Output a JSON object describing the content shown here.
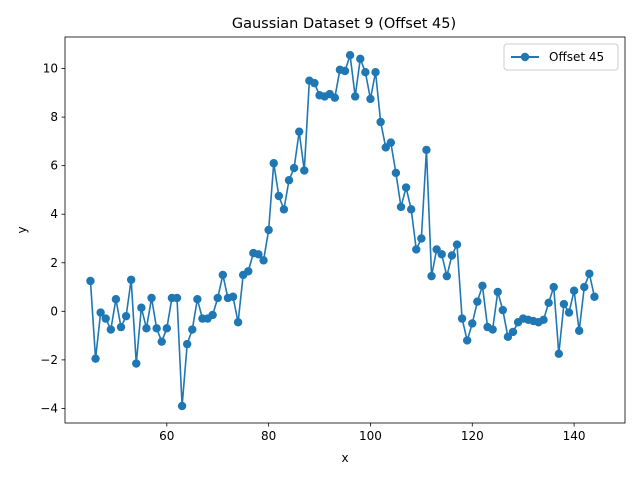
{
  "chart_data": {
    "type": "line",
    "title": "Gaussian Dataset 9 (Offset 45)",
    "xlabel": "x",
    "ylabel": "y",
    "xlim": [
      40,
      150
    ],
    "ylim": [
      -4.6,
      11.3
    ],
    "xticks": [
      60,
      80,
      100,
      120,
      140
    ],
    "yticks": [
      -4,
      -2,
      0,
      2,
      4,
      6,
      8,
      10
    ],
    "grid": false,
    "legend_position": "top-right",
    "series": [
      {
        "name": "Offset 45",
        "color": "#1f77b4",
        "marker": "circle",
        "x": [
          45,
          46,
          47,
          48,
          49,
          50,
          51,
          52,
          53,
          54,
          55,
          56,
          57,
          58,
          59,
          60,
          61,
          62,
          63,
          64,
          65,
          66,
          67,
          68,
          69,
          70,
          71,
          72,
          73,
          74,
          75,
          76,
          77,
          78,
          79,
          80,
          81,
          82,
          83,
          84,
          85,
          86,
          87,
          88,
          89,
          90,
          91,
          92,
          93,
          94,
          95,
          96,
          97,
          98,
          99,
          100,
          101,
          102,
          103,
          104,
          105,
          106,
          107,
          108,
          109,
          110,
          111,
          112,
          113,
          114,
          115,
          116,
          117,
          118,
          119,
          120,
          121,
          122,
          123,
          124,
          125,
          126,
          127,
          128,
          129,
          130,
          131,
          132,
          133,
          134,
          135,
          136,
          137,
          138,
          139,
          140,
          141,
          142,
          143,
          144
        ],
        "values": [
          1.25,
          -1.95,
          -0.05,
          -0.3,
          -0.75,
          0.5,
          -0.65,
          -0.2,
          1.3,
          -2.15,
          0.15,
          -0.7,
          0.55,
          -0.7,
          -1.25,
          -0.7,
          0.55,
          0.55,
          -3.9,
          -1.35,
          -0.75,
          0.5,
          -0.3,
          -0.3,
          -0.15,
          0.55,
          1.5,
          0.55,
          0.6,
          -0.45,
          1.5,
          1.65,
          2.4,
          2.35,
          2.1,
          3.35,
          6.1,
          4.75,
          4.2,
          5.4,
          5.9,
          7.4,
          5.8,
          9.5,
          9.4,
          8.9,
          8.85,
          8.95,
          8.8,
          9.95,
          9.9,
          10.55,
          8.85,
          10.4,
          9.85,
          8.75,
          9.85,
          7.8,
          6.75,
          6.95,
          5.7,
          4.3,
          5.1,
          4.2,
          2.55,
          3.0,
          6.65,
          1.45,
          2.55,
          2.35,
          1.45,
          2.3,
          2.75,
          -0.3,
          -1.2,
          -0.5,
          0.4,
          1.05,
          -0.65,
          -0.75,
          0.8,
          0.05,
          -1.05,
          -0.85,
          -0.45,
          -0.3,
          -0.35,
          -0.4,
          -0.45,
          -0.35,
          0.35,
          1.0,
          -1.75,
          0.3,
          -0.05,
          0.85,
          -0.8,
          1.0,
          1.55,
          0.6
        ]
      }
    ]
  }
}
